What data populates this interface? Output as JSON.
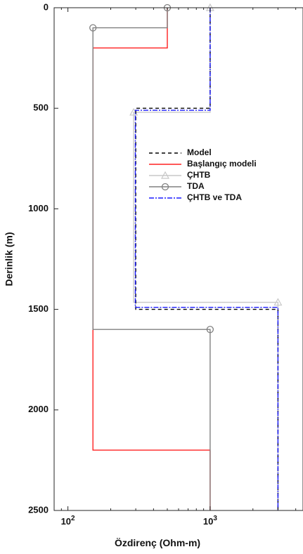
{
  "chart_data": {
    "type": "line",
    "title": "",
    "xlabel": "Özdirenç (Ohm-m)",
    "ylabel": "Derinlik (m)",
    "xscale": "log",
    "xlim": [
      80,
      4500
    ],
    "ylim": [
      2500,
      0
    ],
    "y_reversed": true,
    "grid": false,
    "legend_position": "center-right",
    "x_ticks": [
      {
        "value": 100,
        "base": "10",
        "exp": "2"
      },
      {
        "value": 1000,
        "base": "10",
        "exp": "3"
      }
    ],
    "y_ticks": [
      {
        "value": 0,
        "label": "0"
      },
      {
        "value": 500,
        "label": "500"
      },
      {
        "value": 1000,
        "label": "1000"
      },
      {
        "value": 1500,
        "label": "1500"
      },
      {
        "value": 2000,
        "label": "2000"
      },
      {
        "value": 2500,
        "label": "2500"
      }
    ],
    "series": [
      {
        "name": "Başlangıç modeli",
        "color": "#ff2020",
        "dash": "",
        "marker": "none",
        "points": [
          [
            500,
            0
          ],
          [
            500,
            200
          ],
          [
            150,
            200
          ],
          [
            150,
            1600
          ],
          [
            150,
            2200
          ],
          [
            1000,
            2200
          ],
          [
            1000,
            2500
          ]
        ]
      },
      {
        "name": "TDA",
        "color": "#808080",
        "dash": "",
        "marker": "circle",
        "marker_points": [
          [
            500,
            0
          ],
          [
            150,
            100
          ],
          [
            1000,
            1600
          ]
        ],
        "points": [
          [
            500,
            0
          ],
          [
            500,
            100
          ],
          [
            150,
            100
          ],
          [
            150,
            1600
          ],
          [
            1000,
            1600
          ],
          [
            1000,
            2500
          ]
        ]
      },
      {
        "name": "ÇHTB",
        "color": "#c8c8c8",
        "dash": "",
        "marker": "triangle",
        "marker_points": [
          [
            1000,
            0
          ],
          [
            290,
            520
          ],
          [
            3000,
            1465
          ]
        ],
        "points": [
          [
            1000,
            0
          ],
          [
            1000,
            520
          ],
          [
            290,
            520
          ],
          [
            290,
            1465
          ],
          [
            3000,
            1465
          ],
          [
            3000,
            2500
          ]
        ]
      },
      {
        "name": "Model",
        "color": "#000000",
        "dash": "5,4",
        "marker": "none",
        "points": [
          [
            1000,
            0
          ],
          [
            1000,
            500
          ],
          [
            300,
            500
          ],
          [
            300,
            1500
          ],
          [
            3000,
            1500
          ],
          [
            3000,
            2500
          ]
        ]
      },
      {
        "name": "ÇHTB ve TDA",
        "color": "#1a1aff",
        "dash": "7,2,2,2",
        "marker": "none",
        "points": [
          [
            1000,
            0
          ],
          [
            1000,
            510
          ],
          [
            298,
            510
          ],
          [
            298,
            1490
          ],
          [
            3000,
            1490
          ],
          [
            3000,
            2500
          ]
        ]
      }
    ],
    "legend": [
      {
        "label": "Model",
        "color": "#000000",
        "dash": "5,4",
        "marker": "none"
      },
      {
        "label": "Başlangıç modeli",
        "color": "#ff2020",
        "dash": "",
        "marker": "none"
      },
      {
        "label": "ÇHTB",
        "color": "#c8c8c8",
        "dash": "",
        "marker": "triangle"
      },
      {
        "label": "TDA",
        "color": "#808080",
        "dash": "",
        "marker": "circle"
      },
      {
        "label": "ÇHTB ve TDA",
        "color": "#1a1aff",
        "dash": "7,2,2,2",
        "marker": "none"
      }
    ]
  }
}
